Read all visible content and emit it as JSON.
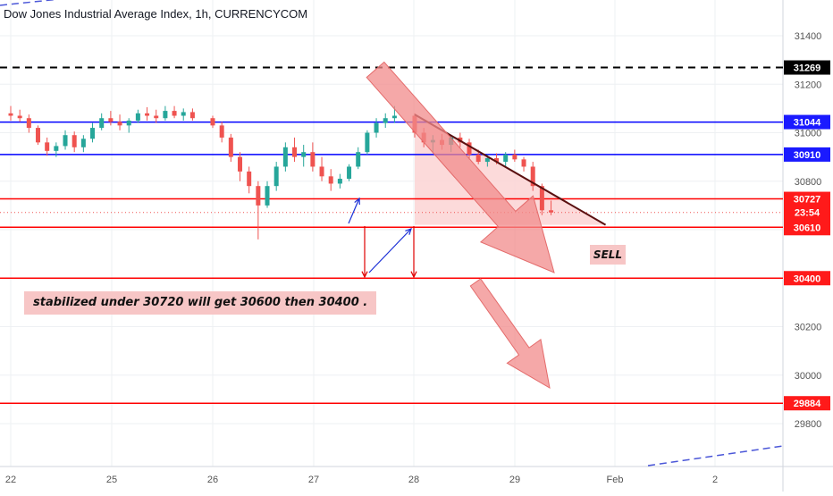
{
  "header": {
    "title": "Dow Jones Industrial Average Index, 1h, CURRENCYCOM"
  },
  "annotations": {
    "note": "stabilized under 30720 will get 30600 then 30400 .",
    "sell": "SELL",
    "countdown": "23:54"
  },
  "colors": {
    "up": "#26a69a",
    "down": "#ef5350",
    "blue_line": "#0000ff",
    "red_line": "#ff0000",
    "black_dash": "#000000",
    "arrow_fill": "#f28b8b",
    "label_red": "#ff1a1a",
    "label_blue": "#1a1aff",
    "label_black": "#000000"
  },
  "chart_data": {
    "type": "candlestick",
    "title": "Dow Jones Industrial Average Index, 1h, CURRENCYCOM",
    "ylim": [
      29620,
      31650
    ],
    "y_ticks": [
      29800,
      30000,
      30200,
      30400,
      30600,
      30800,
      31000,
      31200,
      31400
    ],
    "x_ticks": [
      "22",
      "25",
      "26",
      "27",
      "28",
      "29",
      "Feb",
      "2"
    ],
    "last_price": 30671,
    "levels": [
      {
        "value": 31269,
        "label": "31269",
        "style": "dashed",
        "color": "#000000"
      },
      {
        "value": 31044,
        "label": "31044",
        "style": "solid",
        "color": "#0000ff"
      },
      {
        "value": 30910,
        "label": "30910",
        "style": "solid",
        "color": "#0000ff"
      },
      {
        "value": 30727,
        "label": "30727",
        "style": "solid",
        "color": "#ff0000"
      },
      {
        "value": 30610,
        "label": "30610",
        "style": "solid",
        "color": "#ff0000"
      },
      {
        "value": 30400,
        "label": "30400",
        "style": "solid",
        "color": "#ff0000"
      },
      {
        "value": 29884,
        "label": "29884",
        "style": "solid",
        "color": "#ff0000"
      }
    ],
    "candles": [
      [
        0,
        31080,
        31110,
        31050,
        31070
      ],
      [
        0.09,
        31070,
        31095,
        31045,
        31060
      ],
      [
        0.18,
        31060,
        31075,
        31000,
        31020
      ],
      [
        0.27,
        31020,
        31030,
        30950,
        30960
      ],
      [
        0.36,
        30960,
        30980,
        30905,
        30925
      ],
      [
        0.45,
        30925,
        30960,
        30900,
        30945
      ],
      [
        0.54,
        30945,
        31010,
        30930,
        30990
      ],
      [
        0.63,
        30990,
        31005,
        30920,
        30940
      ],
      [
        0.72,
        30940,
        30990,
        30920,
        30975
      ],
      [
        0.81,
        30975,
        31040,
        30960,
        31020
      ],
      [
        0.9,
        31020,
        31080,
        31010,
        31060
      ],
      [
        0.99,
        31060,
        31090,
        31030,
        31045
      ],
      [
        1.08,
        31045,
        31075,
        31010,
        31030
      ],
      [
        1.17,
        31030,
        31060,
        31000,
        31050
      ],
      [
        1.26,
        31050,
        31095,
        31040,
        31080
      ],
      [
        1.35,
        31080,
        31105,
        31050,
        31070
      ],
      [
        1.44,
        31070,
        31095,
        31040,
        31060
      ],
      [
        1.53,
        31060,
        31110,
        31050,
        31090
      ],
      [
        1.62,
        31090,
        31110,
        31060,
        31070
      ],
      [
        1.71,
        31070,
        31100,
        31050,
        31085
      ],
      [
        1.8,
        31085,
        31100,
        31050,
        31060
      ],
      [
        2.0,
        31060,
        31070,
        31020,
        31030
      ],
      [
        2.09,
        31030,
        31045,
        30960,
        30980
      ],
      [
        2.18,
        30980,
        30995,
        30880,
        30900
      ],
      [
        2.27,
        30900,
        30920,
        30800,
        30840
      ],
      [
        2.36,
        30840,
        30860,
        30750,
        30780
      ],
      [
        2.45,
        30780,
        30800,
        30560,
        30700
      ],
      [
        2.54,
        30700,
        30800,
        30690,
        30780
      ],
      [
        2.63,
        30780,
        30880,
        30760,
        30860
      ],
      [
        2.72,
        30860,
        30960,
        30840,
        30940
      ],
      [
        2.81,
        30940,
        30980,
        30880,
        30900
      ],
      [
        2.9,
        30900,
        30950,
        30860,
        30920
      ],
      [
        2.99,
        30920,
        30960,
        30840,
        30860
      ],
      [
        3.08,
        30860,
        30900,
        30800,
        30820
      ],
      [
        3.17,
        30820,
        30850,
        30760,
        30790
      ],
      [
        3.26,
        30790,
        30830,
        30770,
        30810
      ],
      [
        3.35,
        30810,
        30870,
        30800,
        30860
      ],
      [
        3.44,
        30860,
        30940,
        30850,
        30920
      ],
      [
        3.53,
        30920,
        31010,
        30910,
        31000
      ],
      [
        3.62,
        31000,
        31060,
        30980,
        31040
      ],
      [
        3.71,
        31040,
        31080,
        31020,
        31060
      ],
      [
        3.8,
        31060,
        31110,
        31040,
        31070
      ],
      [
        4.0,
        31070,
        31080,
        30980,
        31000
      ],
      [
        4.09,
        31000,
        31020,
        30940,
        30960
      ],
      [
        4.18,
        30960,
        30990,
        30920,
        30970
      ],
      [
        4.27,
        30970,
        30995,
        30930,
        30950
      ],
      [
        4.36,
        30950,
        30990,
        30920,
        30980
      ],
      [
        4.45,
        30980,
        31000,
        30940,
        30960
      ],
      [
        4.54,
        30960,
        30975,
        30890,
        30910
      ],
      [
        4.63,
        30910,
        30930,
        30870,
        30880
      ],
      [
        4.72,
        30880,
        30910,
        30860,
        30895
      ],
      [
        4.81,
        30895,
        30915,
        30870,
        30880
      ],
      [
        4.9,
        30880,
        30920,
        30860,
        30910
      ],
      [
        4.99,
        30910,
        30930,
        30880,
        30890
      ],
      [
        5.08,
        30890,
        30900,
        30840,
        30860
      ],
      [
        5.17,
        30860,
        30880,
        30760,
        30780
      ],
      [
        5.26,
        30780,
        30790,
        30660,
        30680
      ],
      [
        5.35,
        30680,
        30720,
        30660,
        30671
      ]
    ],
    "trendline": {
      "from": [
        4.0,
        31075
      ],
      "to": [
        5.89,
        30620
      ]
    },
    "shaded_triangle": [
      [
        4.0,
        31075
      ],
      [
        4.0,
        30620
      ],
      [
        5.89,
        30620
      ]
    ]
  }
}
